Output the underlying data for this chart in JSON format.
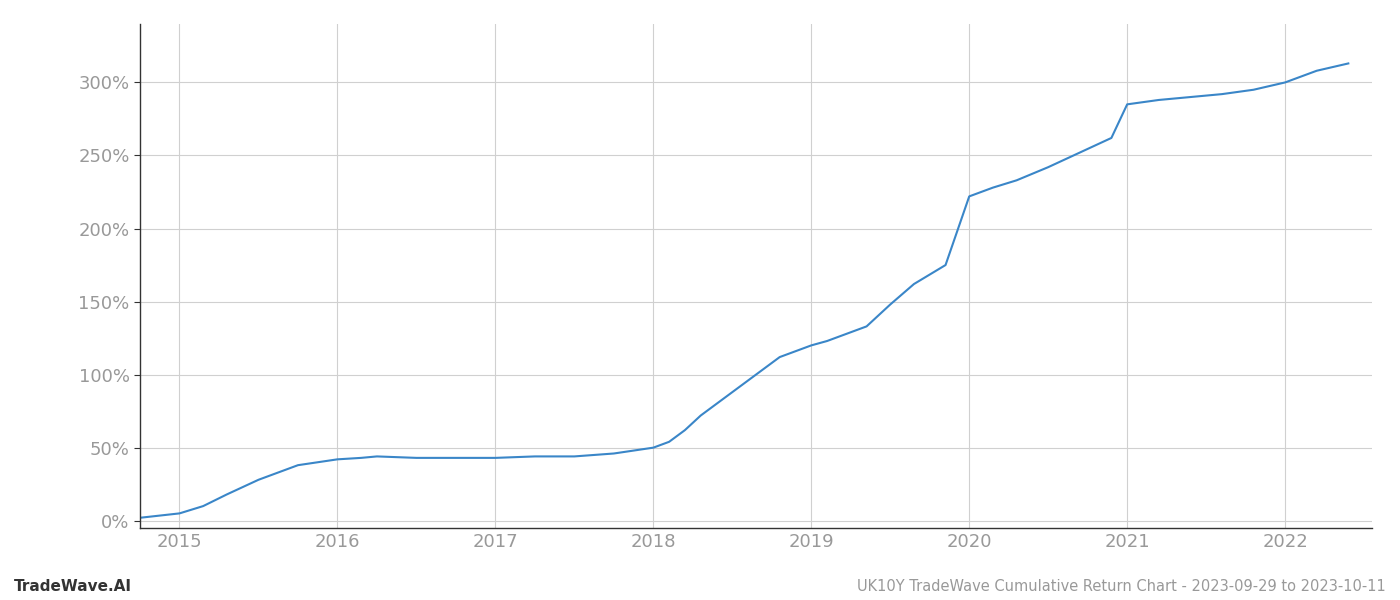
{
  "title": "UK10Y TradeWave Cumulative Return Chart - 2023-09-29 to 2023-10-11",
  "watermark": "TradeWave.AI",
  "line_color": "#3a86c8",
  "background_color": "#ffffff",
  "grid_color": "#d0d0d0",
  "x_years": [
    2015,
    2016,
    2017,
    2018,
    2019,
    2020,
    2021,
    2022
  ],
  "x_data": [
    2014.75,
    2015.0,
    2015.15,
    2015.3,
    2015.5,
    2015.75,
    2016.0,
    2016.15,
    2016.25,
    2016.5,
    2016.75,
    2017.0,
    2017.25,
    2017.5,
    2017.75,
    2018.0,
    2018.1,
    2018.2,
    2018.3,
    2018.5,
    2018.65,
    2018.8,
    2019.0,
    2019.1,
    2019.2,
    2019.35,
    2019.5,
    2019.65,
    2019.85,
    2020.0,
    2020.15,
    2020.3,
    2020.5,
    2020.7,
    2020.9,
    2021.0,
    2021.2,
    2021.4,
    2021.6,
    2021.8,
    2022.0,
    2022.2,
    2022.4
  ],
  "y_data": [
    2,
    5,
    10,
    18,
    28,
    38,
    42,
    43,
    44,
    43,
    43,
    43,
    44,
    44,
    46,
    50,
    54,
    62,
    72,
    88,
    100,
    112,
    120,
    123,
    127,
    133,
    148,
    162,
    175,
    222,
    228,
    233,
    242,
    252,
    262,
    285,
    288,
    290,
    292,
    295,
    300,
    308,
    313
  ],
  "ylim": [
    -5,
    340
  ],
  "yticks": [
    0,
    50,
    100,
    150,
    200,
    250,
    300
  ],
  "xlim": [
    2014.75,
    2022.55
  ],
  "line_width": 1.5,
  "title_fontsize": 10.5,
  "watermark_fontsize": 11,
  "tick_fontsize": 13,
  "tick_color": "#999999",
  "axis_color": "#333333",
  "left_spine_color": "#333333"
}
